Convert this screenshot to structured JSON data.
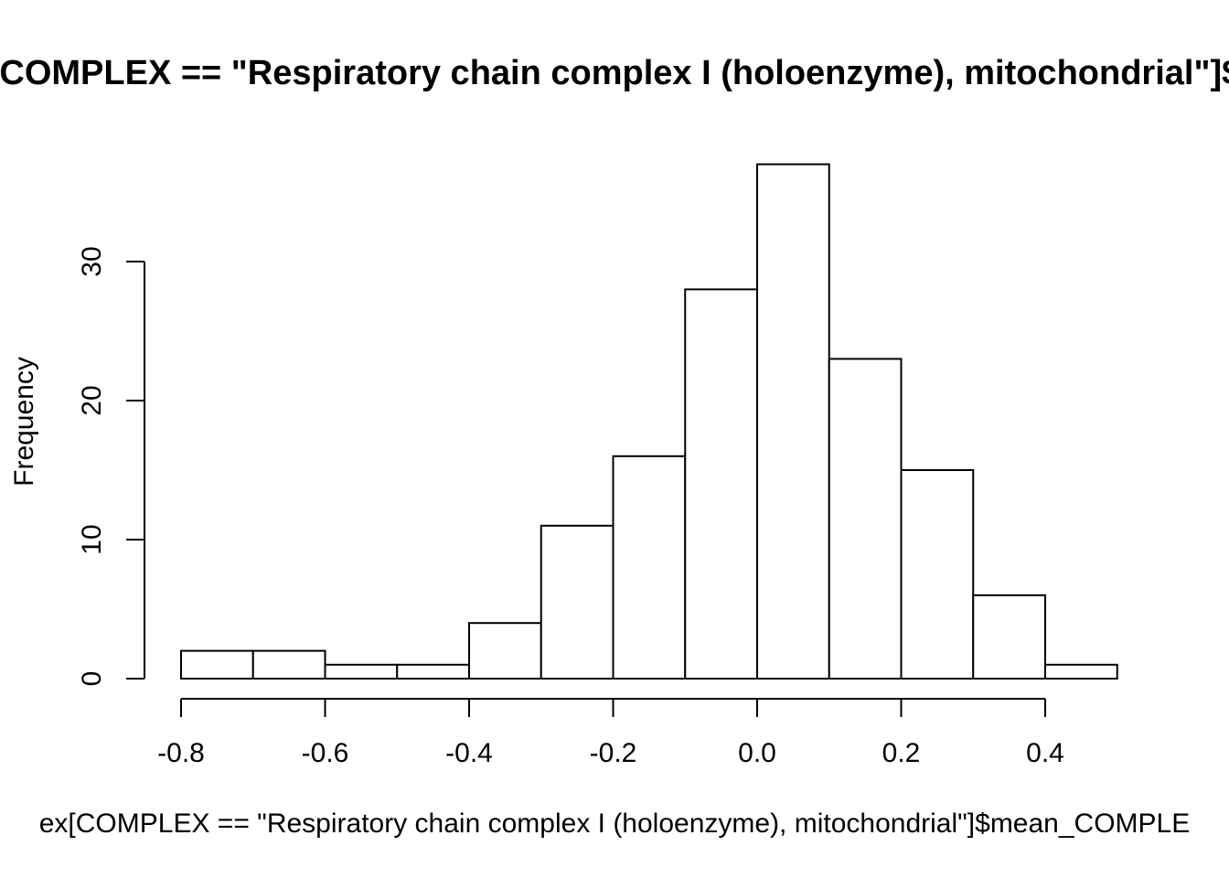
{
  "chart_data": {
    "type": "histogram",
    "title": "[COMPLEX == \"Respiratory chain complex I (holoenzyme), mitochondrial\"]$",
    "xlabel": "ex[COMPLEX == \"Respiratory chain complex I (holoenzyme), mitochondrial\"]$mean_COMPLE",
    "ylabel": "Frequency",
    "bins": [
      {
        "x0": -0.8,
        "x1": -0.7,
        "count": 2
      },
      {
        "x0": -0.7,
        "x1": -0.6,
        "count": 2
      },
      {
        "x0": -0.6,
        "x1": -0.5,
        "count": 1
      },
      {
        "x0": -0.5,
        "x1": -0.4,
        "count": 1
      },
      {
        "x0": -0.4,
        "x1": -0.3,
        "count": 4
      },
      {
        "x0": -0.3,
        "x1": -0.2,
        "count": 11
      },
      {
        "x0": -0.2,
        "x1": -0.1,
        "count": 16
      },
      {
        "x0": -0.1,
        "x1": 0.0,
        "count": 28
      },
      {
        "x0": 0.0,
        "x1": 0.1,
        "count": 37
      },
      {
        "x0": 0.1,
        "x1": 0.2,
        "count": 23
      },
      {
        "x0": 0.2,
        "x1": 0.3,
        "count": 15
      },
      {
        "x0": 0.3,
        "x1": 0.4,
        "count": 6
      },
      {
        "x0": 0.4,
        "x1": 0.5,
        "count": 1
      }
    ],
    "x_ticks": [
      -0.8,
      -0.6,
      -0.4,
      -0.2,
      0.0,
      0.2,
      0.4
    ],
    "x_tick_labels": [
      "-0.8",
      "-0.6",
      "-0.4",
      "-0.2",
      "0.0",
      "0.2",
      "0.4"
    ],
    "y_ticks": [
      0,
      10,
      20,
      30
    ],
    "y_tick_labels": [
      "0",
      "10",
      "20",
      "30"
    ],
    "xlim": [
      -0.8,
      0.5
    ],
    "ylim": [
      0,
      37
    ],
    "grid": false,
    "bar_fill": "#ffffff",
    "bar_stroke": "#000000"
  }
}
